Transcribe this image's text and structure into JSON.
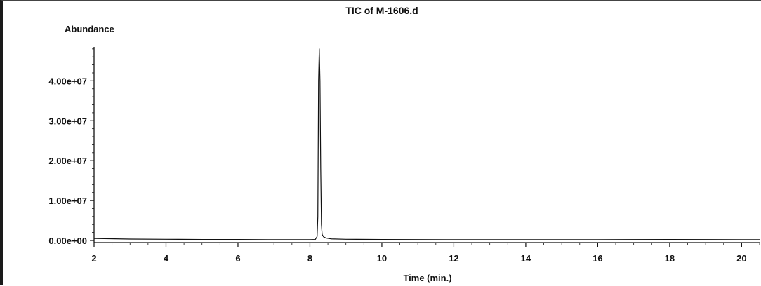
{
  "chart_data": {
    "type": "line",
    "title": "TIC of M-1606.d",
    "ylabel": "Abundance",
    "xlabel": "Time (min.)",
    "xlim": [
      2,
      20.5
    ],
    "ylim": [
      0,
      48500000
    ],
    "x_ticks": [
      2,
      4,
      6,
      8,
      10,
      12,
      14,
      16,
      18,
      20
    ],
    "x_tick_labels": [
      "2",
      "4",
      "6",
      "8",
      "10",
      "12",
      "14",
      "16",
      "18",
      "20"
    ],
    "y_ticks": [
      0,
      10000000,
      20000000,
      30000000,
      40000000
    ],
    "y_tick_labels": [
      "0.00e+00",
      "1.00e+07",
      "2.00e+07",
      "3.00e+07",
      "4.00e+07"
    ],
    "series": [
      {
        "x": [
          2.0,
          3.0,
          4.0,
          5.0,
          6.0,
          7.0,
          8.0,
          8.15,
          8.2,
          8.22,
          8.24,
          8.26,
          8.28,
          8.3,
          8.32,
          8.34,
          8.38,
          8.45,
          8.6,
          9.0,
          10.0,
          12.0,
          14.0,
          16.0,
          18.0,
          20.0,
          20.5
        ],
        "y": [
          500000,
          350000,
          300000,
          250000,
          250000,
          200000,
          200000,
          250000,
          1000000,
          6000000,
          40000000,
          48000000,
          40000000,
          18000000,
          4000000,
          1500000,
          900000,
          600000,
          400000,
          300000,
          250000,
          200000,
          200000,
          200000,
          250000,
          200000,
          200000
        ]
      }
    ]
  }
}
